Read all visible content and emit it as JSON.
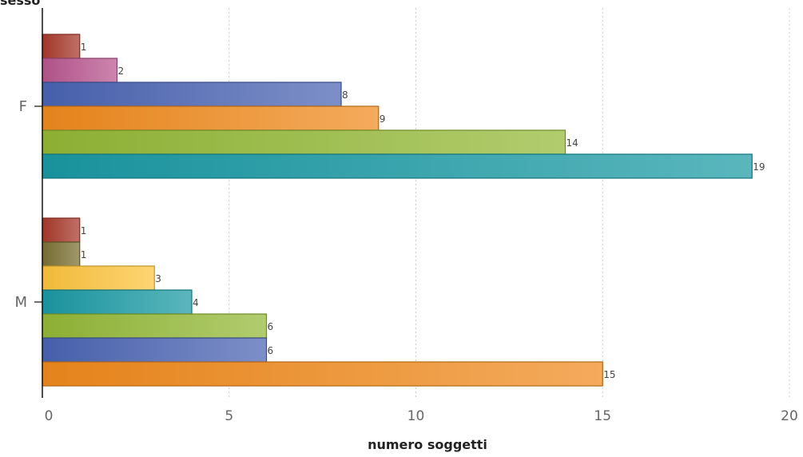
{
  "chart_data": {
    "type": "bar",
    "orientation": "horizontal",
    "ylabel": "sesso",
    "xlabel": "numero soggetti",
    "xlim": [
      0,
      20
    ],
    "x_ticks": [
      0,
      5,
      10,
      15,
      20
    ],
    "x_tick_labels": [
      "0",
      "5",
      "10",
      "15",
      "20"
    ],
    "grid": "vertical dotted",
    "legend": "none",
    "groups": [
      {
        "category": "F",
        "bars": [
          {
            "value": 1,
            "color": "#a8382a"
          },
          {
            "value": 2,
            "color": "#b8558f"
          },
          {
            "value": 8,
            "color": "#4a64b3"
          },
          {
            "value": 9,
            "color": "#f08a1c"
          },
          {
            "value": 14,
            "color": "#93b836"
          },
          {
            "value": 19,
            "color": "#1a9aa4"
          }
        ]
      },
      {
        "category": "M",
        "bars": [
          {
            "value": 1,
            "color": "#a8382a"
          },
          {
            "value": 1,
            "color": "#7a7033"
          },
          {
            "value": 3,
            "color": "#fdc43c"
          },
          {
            "value": 4,
            "color": "#1a9aa4"
          },
          {
            "value": 6,
            "color": "#93b836"
          },
          {
            "value": 6,
            "color": "#4a64b3"
          },
          {
            "value": 15,
            "color": "#f08a1c"
          }
        ]
      }
    ]
  }
}
